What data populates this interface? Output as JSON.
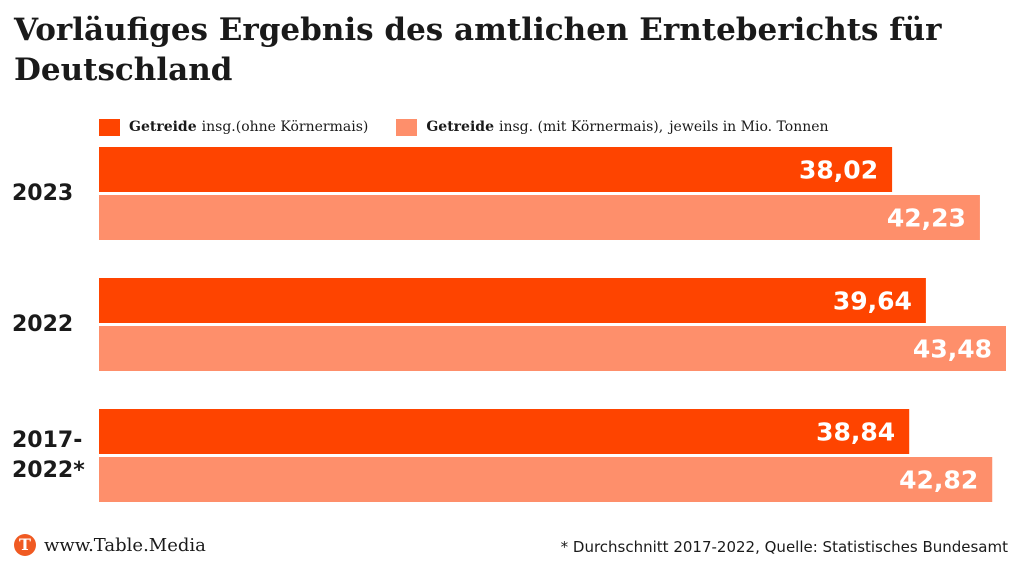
{
  "title": "Vorläufiges Ergebnis des amtlichen Ernteberichts für Deutschland",
  "legend": {
    "items": [
      {
        "strong": "Getreide",
        "rest": "insg.(ohne Körnermais)",
        "color": "#fe4400"
      },
      {
        "strong": "Getreide",
        "rest": "insg. (mit Körnermais),",
        "color": "#fe8f6b"
      }
    ],
    "note": "jeweils in Mio. Tonnen"
  },
  "chart_data": {
    "type": "bar",
    "orientation": "horizontal",
    "categories": [
      "2023",
      "2022",
      "2017-\n2022*"
    ],
    "series": [
      {
        "name": "Getreide insg.(ohne Körnermais)",
        "color": "#fe4400",
        "values": [
          38.02,
          39.64,
          38.84
        ]
      },
      {
        "name": "Getreide insg. (mit Körnermais)",
        "color": "#fe8f6b",
        "values": [
          42.23,
          43.48,
          42.82
        ]
      }
    ],
    "value_labels": [
      [
        "38,02",
        "39,64",
        "38,84"
      ],
      [
        "42,23",
        "43,48",
        "42,82"
      ]
    ],
    "xlim": [
      0,
      43.48
    ],
    "grid": false,
    "legend_position": "top-left"
  },
  "footer": {
    "logo_letter": "T",
    "logo_text": "www.Table.Media",
    "source": "* Durchschnitt 2017-2022, Quelle: Statistisches Bundesamt"
  }
}
